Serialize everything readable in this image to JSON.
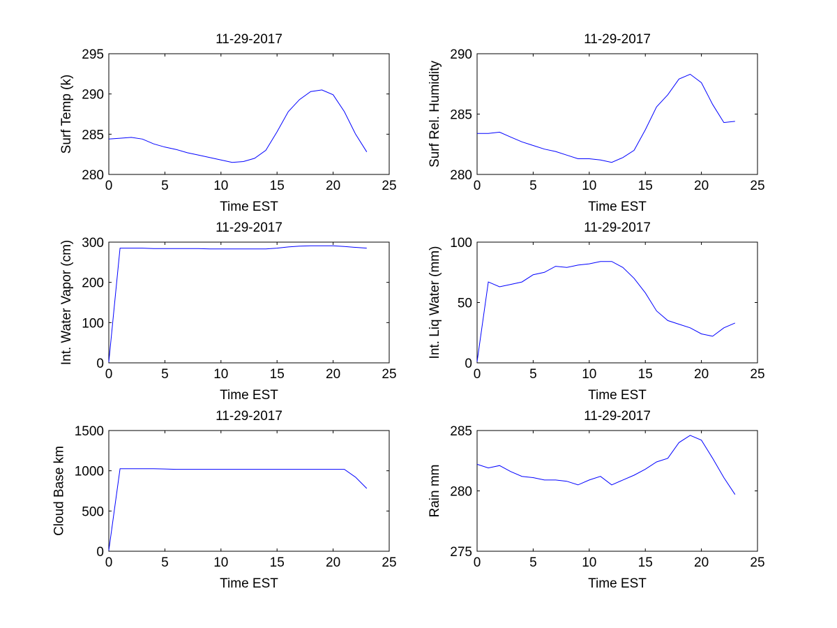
{
  "chart_data": [
    {
      "type": "line",
      "title": "11-29-2017",
      "xlabel": "Time EST",
      "ylabel": "Surf Temp (k)",
      "xlim": [
        0,
        25
      ],
      "ylim": [
        280,
        295
      ],
      "xticks": [
        0,
        5,
        10,
        15,
        20,
        25
      ],
      "yticks": [
        280,
        285,
        290,
        295
      ],
      "x": [
        0,
        1,
        2,
        3,
        4,
        5,
        6,
        7,
        8,
        9,
        10,
        11,
        12,
        13,
        14,
        15,
        16,
        17,
        18,
        19,
        20,
        21,
        22,
        23
      ],
      "series": [
        {
          "values": [
            284.4,
            284.5,
            284.6,
            284.4,
            283.8,
            283.4,
            283.1,
            282.7,
            282.4,
            282.1,
            281.8,
            281.5,
            281.6,
            282.0,
            283.0,
            285.3,
            287.8,
            289.3,
            290.3,
            290.5,
            289.9,
            287.8,
            285.0,
            282.8
          ]
        }
      ]
    },
    {
      "type": "line",
      "title": "11-29-2017",
      "xlabel": "Time EST",
      "ylabel": "Surf Rel. Humidity",
      "xlim": [
        0,
        25
      ],
      "ylim": [
        280,
        290
      ],
      "xticks": [
        0,
        5,
        10,
        15,
        20,
        25
      ],
      "yticks": [
        280,
        285,
        290
      ],
      "x": [
        0,
        1,
        2,
        3,
        4,
        5,
        6,
        7,
        8,
        9,
        10,
        11,
        12,
        13,
        14,
        15,
        16,
        17,
        18,
        19,
        20,
        21,
        22,
        23
      ],
      "series": [
        {
          "values": [
            283.4,
            283.4,
            283.5,
            283.1,
            282.7,
            282.4,
            282.1,
            281.9,
            281.6,
            281.3,
            281.3,
            281.2,
            281.0,
            281.4,
            282.0,
            283.7,
            285.6,
            286.6,
            287.9,
            288.3,
            287.6,
            285.8,
            284.3,
            284.4
          ]
        }
      ]
    },
    {
      "type": "line",
      "title": "11-29-2017",
      "xlabel": "Time EST",
      "ylabel": "Int. Water Vapor (cm)",
      "xlim": [
        0,
        25
      ],
      "ylim": [
        0,
        300
      ],
      "xticks": [
        0,
        5,
        10,
        15,
        20,
        25
      ],
      "yticks": [
        0,
        100,
        200,
        300
      ],
      "x": [
        0,
        1,
        2,
        3,
        4,
        5,
        6,
        7,
        8,
        9,
        10,
        11,
        12,
        13,
        14,
        15,
        16,
        17,
        18,
        19,
        20,
        21,
        22,
        23
      ],
      "series": [
        {
          "values": [
            2,
            285,
            285,
            285,
            284,
            284,
            284,
            284,
            284,
            283,
            283,
            283,
            283,
            283,
            283,
            285,
            288,
            290,
            291,
            291,
            291,
            289,
            287,
            285
          ]
        }
      ]
    },
    {
      "type": "line",
      "title": "11-29-2017",
      "xlabel": "Time EST",
      "ylabel": "Int. Liq Water (mm)",
      "xlim": [
        0,
        25
      ],
      "ylim": [
        0,
        100
      ],
      "xticks": [
        0,
        5,
        10,
        15,
        20,
        25
      ],
      "yticks": [
        0,
        50,
        100
      ],
      "x": [
        0,
        1,
        2,
        3,
        4,
        5,
        6,
        7,
        8,
        9,
        10,
        11,
        12,
        13,
        14,
        15,
        16,
        17,
        18,
        19,
        20,
        21,
        22,
        23
      ],
      "series": [
        {
          "values": [
            1,
            67,
            63,
            65,
            67,
            73,
            75,
            80,
            79,
            81,
            82,
            84,
            84,
            79,
            70,
            58,
            43,
            35,
            32,
            29,
            24,
            22,
            29,
            33
          ]
        }
      ]
    },
    {
      "type": "line",
      "title": "11-29-2017",
      "xlabel": "Time EST",
      "ylabel": "Cloud Base km",
      "xlim": [
        0,
        25
      ],
      "ylim": [
        0,
        1500
      ],
      "xticks": [
        0,
        5,
        10,
        15,
        20,
        25
      ],
      "yticks": [
        0,
        500,
        1000,
        1500
      ],
      "x": [
        0,
        1,
        2,
        3,
        4,
        5,
        6,
        7,
        8,
        9,
        10,
        11,
        12,
        13,
        14,
        15,
        16,
        17,
        18,
        19,
        20,
        21,
        22,
        23
      ],
      "series": [
        {
          "values": [
            10,
            1025,
            1025,
            1025,
            1025,
            1022,
            1018,
            1018,
            1018,
            1018,
            1018,
            1018,
            1018,
            1018,
            1018,
            1018,
            1018,
            1018,
            1018,
            1018,
            1018,
            1018,
            920,
            780
          ]
        }
      ]
    },
    {
      "type": "line",
      "title": "11-29-2017",
      "xlabel": "Time EST",
      "ylabel": "Rain mm",
      "xlim": [
        0,
        25
      ],
      "ylim": [
        275,
        285
      ],
      "xticks": [
        0,
        5,
        10,
        15,
        20,
        25
      ],
      "yticks": [
        275,
        280,
        285
      ],
      "x": [
        0,
        1,
        2,
        3,
        4,
        5,
        6,
        7,
        8,
        9,
        10,
        11,
        12,
        13,
        14,
        15,
        16,
        17,
        18,
        19,
        20,
        21,
        22,
        23
      ],
      "series": [
        {
          "values": [
            282.2,
            281.9,
            282.1,
            281.6,
            281.2,
            281.1,
            280.9,
            280.9,
            280.8,
            280.5,
            280.9,
            281.2,
            280.5,
            280.9,
            281.3,
            281.8,
            282.4,
            282.7,
            284.0,
            284.6,
            284.2,
            282.7,
            281.1,
            279.7
          ]
        }
      ]
    }
  ]
}
